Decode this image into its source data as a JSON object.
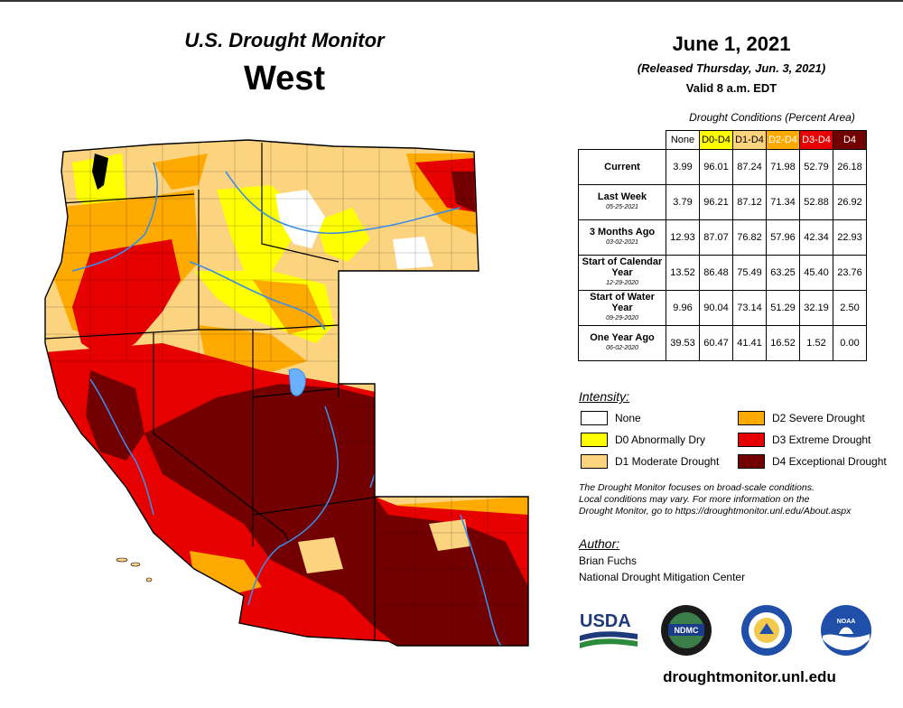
{
  "title": {
    "monitor": "U.S. Drought Monitor",
    "region": "West"
  },
  "date": {
    "main": "June 1, 2021",
    "released": "(Released Thursday, Jun. 3, 2021)",
    "valid": "Valid 8 a.m. EDT"
  },
  "table": {
    "caption": "Drought Conditions (Percent Area)",
    "columns": [
      {
        "label": "None",
        "color": "#ffffff",
        "text_color": "#000000"
      },
      {
        "label": "D0-D4",
        "color": "#ffff00",
        "text_color": "#000000"
      },
      {
        "label": "D1-D4",
        "color": "#fcd37f",
        "text_color": "#000000"
      },
      {
        "label": "D2-D4",
        "color": "#ffaa00",
        "text_color": "#ffffff"
      },
      {
        "label": "D3-D4",
        "color": "#e60000",
        "text_color": "#ffffff"
      },
      {
        "label": "D4",
        "color": "#730000",
        "text_color": "#ffffff"
      }
    ],
    "rows": [
      {
        "label": "Current",
        "sub": "",
        "values": [
          "3.99",
          "96.01",
          "87.24",
          "71.98",
          "52.79",
          "26.18"
        ]
      },
      {
        "label": "Last Week",
        "sub": "05-25-2021",
        "values": [
          "3.79",
          "96.21",
          "87.12",
          "71.34",
          "52.88",
          "26.92"
        ]
      },
      {
        "label": "3 Months Ago",
        "sub": "03-02-2021",
        "values": [
          "12.93",
          "87.07",
          "76.82",
          "57.96",
          "42.34",
          "22.93"
        ]
      },
      {
        "label": "Start of Calendar Year",
        "sub": "12-29-2020",
        "values": [
          "13.52",
          "86.48",
          "75.49",
          "63.25",
          "45.40",
          "23.76"
        ]
      },
      {
        "label": "Start of Water Year",
        "sub": "09-29-2020",
        "values": [
          "9.96",
          "90.04",
          "73.14",
          "51.29",
          "32.19",
          "2.50"
        ]
      },
      {
        "label": "One Year Ago",
        "sub": "06-02-2020",
        "values": [
          "39.53",
          "60.47",
          "41.41",
          "16.52",
          "1.52",
          "0.00"
        ]
      }
    ]
  },
  "intensity": {
    "heading": "Intensity:",
    "items": [
      {
        "label": "None",
        "color": "#ffffff"
      },
      {
        "label": "D0 Abnormally Dry",
        "color": "#ffff00"
      },
      {
        "label": "D1 Moderate Drought",
        "color": "#fcd37f"
      },
      {
        "label": "D2 Severe Drought",
        "color": "#ffaa00"
      },
      {
        "label": "D3 Extreme Drought",
        "color": "#e60000"
      },
      {
        "label": "D4 Exceptional Drought",
        "color": "#730000"
      }
    ]
  },
  "disclaimer": {
    "line1": "The Drought Monitor focuses on broad-scale conditions.",
    "line2": "Local conditions may vary. For more information on the",
    "line3": "Drought Monitor, go to https://droughtmonitor.unl.edu/About.aspx"
  },
  "author": {
    "heading": "Author:",
    "name": "Brian Fuchs",
    "org": "National Drought Mitigation Center"
  },
  "logos": {
    "usda": "USDA",
    "ndmc": "NDMC",
    "noaa": "NOAA"
  },
  "url": "droughtmonitor.unl.edu",
  "colors": {
    "d0": "#ffff00",
    "d1": "#fcd37f",
    "d2": "#ffaa00",
    "d3": "#e60000",
    "d4": "#730000",
    "water": "#6ab0ff",
    "river": "#3c8ce6"
  }
}
